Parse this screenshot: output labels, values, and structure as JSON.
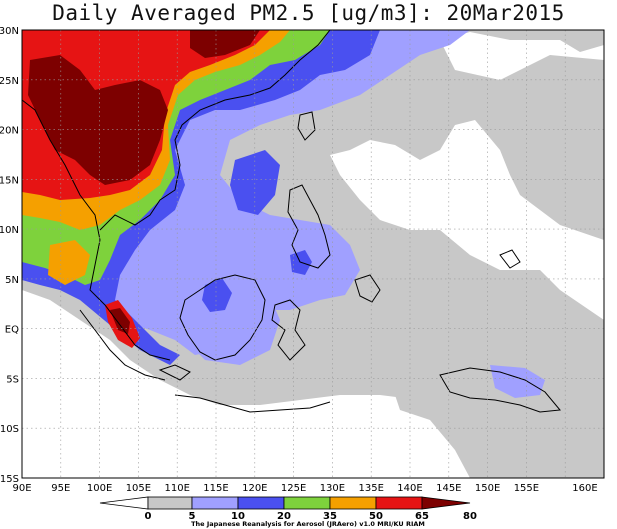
{
  "title": "Daily Averaged PM2.5 [ug/m3]: 20Mar2015",
  "map": {
    "lon_labels": [
      "90E",
      "95E",
      "100E",
      "105E",
      "110E",
      "115E",
      "120E",
      "125E",
      "130E",
      "135E",
      "140E",
      "145E",
      "150E",
      "155E",
      "160E"
    ],
    "lat_labels": [
      "30N",
      "25N",
      "20N",
      "15N",
      "10N",
      "5N",
      "EQ",
      "5S",
      "10S",
      "15S"
    ],
    "grid": true,
    "colors": {
      "c0": "#ffffff",
      "c5": "#c8c8c8",
      "c10": "#a0a0ff",
      "c20": "#4a50f0",
      "c35": "#7ed23c",
      "c50": "#f5a000",
      "c65": "#e61414",
      "c80": "#7d0000"
    }
  },
  "colorbar": {
    "ticks": [
      "0",
      "5",
      "10",
      "20",
      "35",
      "50",
      "65",
      "80"
    ],
    "colors": [
      "#ffffff",
      "#c8c8c8",
      "#a0a0ff",
      "#4a50f0",
      "#7ed23c",
      "#f5a000",
      "#e61414",
      "#7d0000"
    ]
  },
  "credit": "The Japanese Reanalysis for Aerosol (JRAero) v1.0 MRI/KU RIAM"
}
